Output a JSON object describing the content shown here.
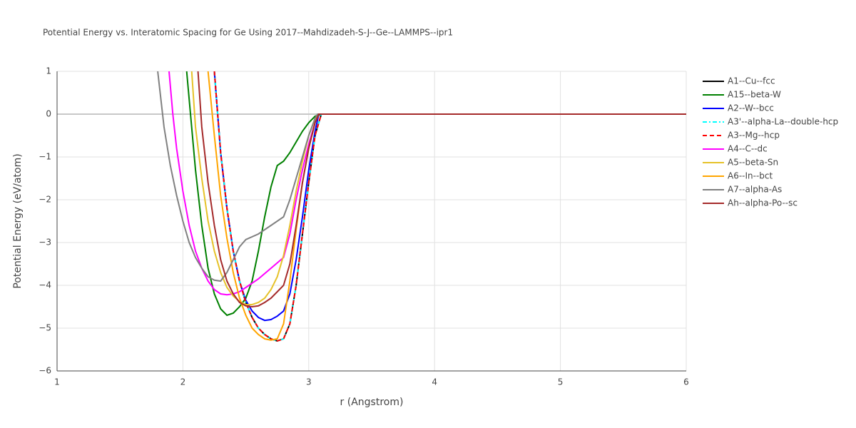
{
  "chart_data": {
    "type": "line",
    "title": "Potential Energy vs. Interatomic Spacing for Ge Using 2017--Mahdizadeh-S-J--Ge--LAMMPS--ipr1",
    "xlabel": "r (Angstrom)",
    "ylabel": "Potential Energy (eV/atom)",
    "xlim": [
      1,
      6
    ],
    "ylim": [
      -6,
      1
    ],
    "xticks": [
      1,
      2,
      3,
      4,
      5,
      6
    ],
    "yticks": [
      1,
      0,
      {
        "value": -1,
        "label": "−1"
      },
      {
        "value": -2,
        "label": "−2"
      },
      {
        "value": -3,
        "label": "−3"
      },
      {
        "value": -4,
        "label": "−4"
      },
      {
        "value": -5,
        "label": "−5"
      },
      {
        "value": -6,
        "label": "−6"
      }
    ],
    "grid": true,
    "legend": "right",
    "series": [
      {
        "name": "A1--Cu--fcc",
        "color": "#000000",
        "dash": "solid",
        "x": [
          2.25,
          2.3,
          2.35,
          2.4,
          2.45,
          2.5,
          2.55,
          2.6,
          2.65,
          2.7,
          2.75,
          2.8,
          2.85,
          2.9,
          2.95,
          3.0,
          3.05,
          3.1,
          6
        ],
        "values": [
          1,
          -0.9,
          -2.2,
          -3.2,
          -3.9,
          -4.4,
          -4.75,
          -5.0,
          -5.15,
          -5.25,
          -5.3,
          -5.25,
          -4.9,
          -4.0,
          -2.8,
          -1.6,
          -0.5,
          0,
          0
        ]
      },
      {
        "name": "A15--beta-W",
        "color": "#008000",
        "dash": "solid",
        "x": [
          2.03,
          2.1,
          2.15,
          2.2,
          2.25,
          2.3,
          2.35,
          2.4,
          2.45,
          2.5,
          2.55,
          2.6,
          2.65,
          2.7,
          2.75,
          2.8,
          2.85,
          2.9,
          2.95,
          3.0,
          3.05,
          3.1,
          6
        ],
        "values": [
          1,
          -1.3,
          -2.6,
          -3.6,
          -4.2,
          -4.55,
          -4.7,
          -4.65,
          -4.5,
          -4.3,
          -3.9,
          -3.2,
          -2.4,
          -1.7,
          -1.2,
          -1.1,
          -0.9,
          -0.65,
          -0.4,
          -0.2,
          -0.05,
          0,
          0
        ]
      },
      {
        "name": "A2--W--bcc",
        "color": "#0000ff",
        "dash": "solid",
        "x": [
          2.25,
          2.3,
          2.35,
          2.4,
          2.45,
          2.5,
          2.55,
          2.6,
          2.65,
          2.7,
          2.75,
          2.8,
          2.85,
          2.9,
          2.95,
          3.0,
          3.05,
          3.08,
          6
        ],
        "values": [
          1,
          -0.9,
          -2.2,
          -3.2,
          -3.9,
          -4.35,
          -4.6,
          -4.75,
          -4.82,
          -4.8,
          -4.72,
          -4.6,
          -4.2,
          -3.4,
          -2.4,
          -1.3,
          -0.4,
          0,
          0
        ]
      },
      {
        "name": "A3'--alpha-La--double-hcp",
        "color": "#00ffff",
        "dash": "dashdot",
        "x": [
          2.25,
          2.3,
          2.35,
          2.4,
          2.45,
          2.5,
          2.55,
          2.6,
          2.65,
          2.7,
          2.75,
          2.8,
          2.85,
          2.9,
          2.95,
          3.0,
          3.05,
          3.1,
          6
        ],
        "values": [
          1,
          -0.9,
          -2.2,
          -3.2,
          -3.9,
          -4.4,
          -4.75,
          -5.0,
          -5.15,
          -5.25,
          -5.3,
          -5.25,
          -4.9,
          -4.0,
          -2.8,
          -1.6,
          -0.5,
          0,
          0
        ]
      },
      {
        "name": "A3--Mg--hcp",
        "color": "#ff0000",
        "dash": "dash",
        "x": [
          2.25,
          2.3,
          2.35,
          2.4,
          2.45,
          2.5,
          2.55,
          2.6,
          2.65,
          2.7,
          2.75,
          2.8,
          2.85,
          2.9,
          2.95,
          3.0,
          3.05,
          3.1,
          6
        ],
        "values": [
          1,
          -0.9,
          -2.2,
          -3.2,
          -3.9,
          -4.4,
          -4.75,
          -5.0,
          -5.15,
          -5.25,
          -5.3,
          -5.25,
          -4.9,
          -4.0,
          -2.8,
          -1.6,
          -0.5,
          0,
          0
        ]
      },
      {
        "name": "A4--C--dc",
        "color": "#ff00ff",
        "dash": "solid",
        "x": [
          1.89,
          1.92,
          1.95,
          2.0,
          2.05,
          2.1,
          2.15,
          2.2,
          2.25,
          2.3,
          2.35,
          2.4,
          2.45,
          2.5,
          2.6,
          2.7,
          2.8,
          2.85,
          2.9,
          2.95,
          3.0,
          3.05,
          3.08,
          6
        ],
        "values": [
          1,
          0,
          -0.8,
          -1.8,
          -2.6,
          -3.2,
          -3.6,
          -3.9,
          -4.1,
          -4.2,
          -4.22,
          -4.2,
          -4.15,
          -4.05,
          -3.85,
          -3.6,
          -3.35,
          -2.8,
          -2.0,
          -1.3,
          -0.7,
          -0.2,
          0,
          0
        ]
      },
      {
        "name": "A5--beta-Sn",
        "color": "#e6c229",
        "dash": "solid",
        "x": [
          2.07,
          2.1,
          2.15,
          2.2,
          2.25,
          2.3,
          2.35,
          2.4,
          2.45,
          2.5,
          2.55,
          2.6,
          2.65,
          2.7,
          2.75,
          2.8,
          2.85,
          2.9,
          2.95,
          3.0,
          3.05,
          3.08,
          6
        ],
        "values": [
          1,
          -0.3,
          -1.5,
          -2.5,
          -3.2,
          -3.7,
          -4.05,
          -4.25,
          -4.38,
          -4.45,
          -4.45,
          -4.4,
          -4.3,
          -4.1,
          -3.8,
          -3.3,
          -2.6,
          -1.8,
          -1.1,
          -0.5,
          -0.1,
          0,
          0
        ]
      },
      {
        "name": "A6--In--bct",
        "color": "#ffa500",
        "dash": "solid",
        "x": [
          2.2,
          2.25,
          2.3,
          2.35,
          2.4,
          2.45,
          2.5,
          2.55,
          2.6,
          2.65,
          2.7,
          2.75,
          2.8,
          2.85,
          2.9,
          2.95,
          3.0,
          3.05,
          3.08,
          6
        ],
        "values": [
          1,
          -0.5,
          -1.9,
          -2.9,
          -3.7,
          -4.3,
          -4.7,
          -5.0,
          -5.15,
          -5.25,
          -5.28,
          -5.25,
          -4.9,
          -3.9,
          -2.7,
          -1.6,
          -0.8,
          -0.2,
          0,
          0
        ]
      },
      {
        "name": "A7--alpha-As",
        "color": "#808080",
        "dash": "solid",
        "x": [
          1.8,
          1.85,
          1.9,
          1.95,
          2.0,
          2.05,
          2.1,
          2.15,
          2.2,
          2.25,
          2.3,
          2.35,
          2.4,
          2.45,
          2.5,
          2.6,
          2.7,
          2.8,
          2.85,
          2.9,
          2.95,
          3.0,
          3.05,
          3.07,
          6
        ],
        "values": [
          1,
          -0.3,
          -1.2,
          -1.9,
          -2.5,
          -3.0,
          -3.35,
          -3.6,
          -3.8,
          -3.88,
          -3.9,
          -3.7,
          -3.4,
          -3.1,
          -2.93,
          -2.8,
          -2.6,
          -2.4,
          -2.0,
          -1.5,
          -1.0,
          -0.5,
          -0.1,
          0,
          0
        ]
      },
      {
        "name": "Ah--alpha-Po--sc",
        "color": "#a52a2a",
        "dash": "solid",
        "x": [
          2.12,
          2.15,
          2.2,
          2.25,
          2.3,
          2.35,
          2.4,
          2.45,
          2.5,
          2.55,
          2.6,
          2.65,
          2.7,
          2.75,
          2.8,
          2.85,
          2.9,
          2.95,
          3.0,
          3.05,
          3.08,
          6
        ],
        "values": [
          1,
          -0.3,
          -1.6,
          -2.6,
          -3.4,
          -3.9,
          -4.2,
          -4.4,
          -4.48,
          -4.5,
          -4.48,
          -4.4,
          -4.3,
          -4.15,
          -4.0,
          -3.5,
          -2.6,
          -1.6,
          -0.8,
          -0.2,
          0,
          0
        ]
      }
    ]
  }
}
